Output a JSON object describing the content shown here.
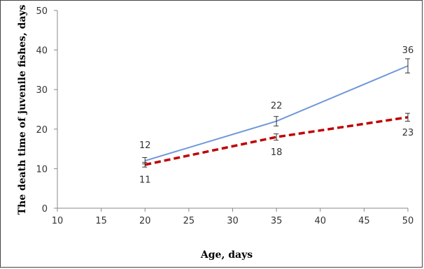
{
  "chart_data": {
    "type": "line",
    "title": "",
    "xlabel": "Age, days",
    "ylabel": "The death time of juvenile fishes, days",
    "xlim": [
      10,
      50
    ],
    "ylim": [
      0,
      50
    ],
    "x_ticks": [
      10,
      15,
      20,
      25,
      30,
      35,
      40,
      45,
      50
    ],
    "y_ticks": [
      0,
      10,
      20,
      30,
      40,
      50
    ],
    "grid": false,
    "legend": "none",
    "series": [
      {
        "color": "#6f98d8",
        "style": "solid",
        "x": [
          20,
          35,
          50
        ],
        "y": [
          12,
          22,
          36
        ],
        "error": [
          0.8,
          1.2,
          1.8
        ],
        "labels": [
          "12",
          "22",
          "36"
        ],
        "label_position": "above"
      },
      {
        "color": "#c00000",
        "style": "dashed",
        "x": [
          20,
          35,
          50
        ],
        "y": [
          11,
          18,
          23
        ],
        "error": [
          0.6,
          0.8,
          1.0
        ],
        "labels": [
          "11",
          "18",
          "23"
        ],
        "label_position": "below"
      }
    ]
  }
}
